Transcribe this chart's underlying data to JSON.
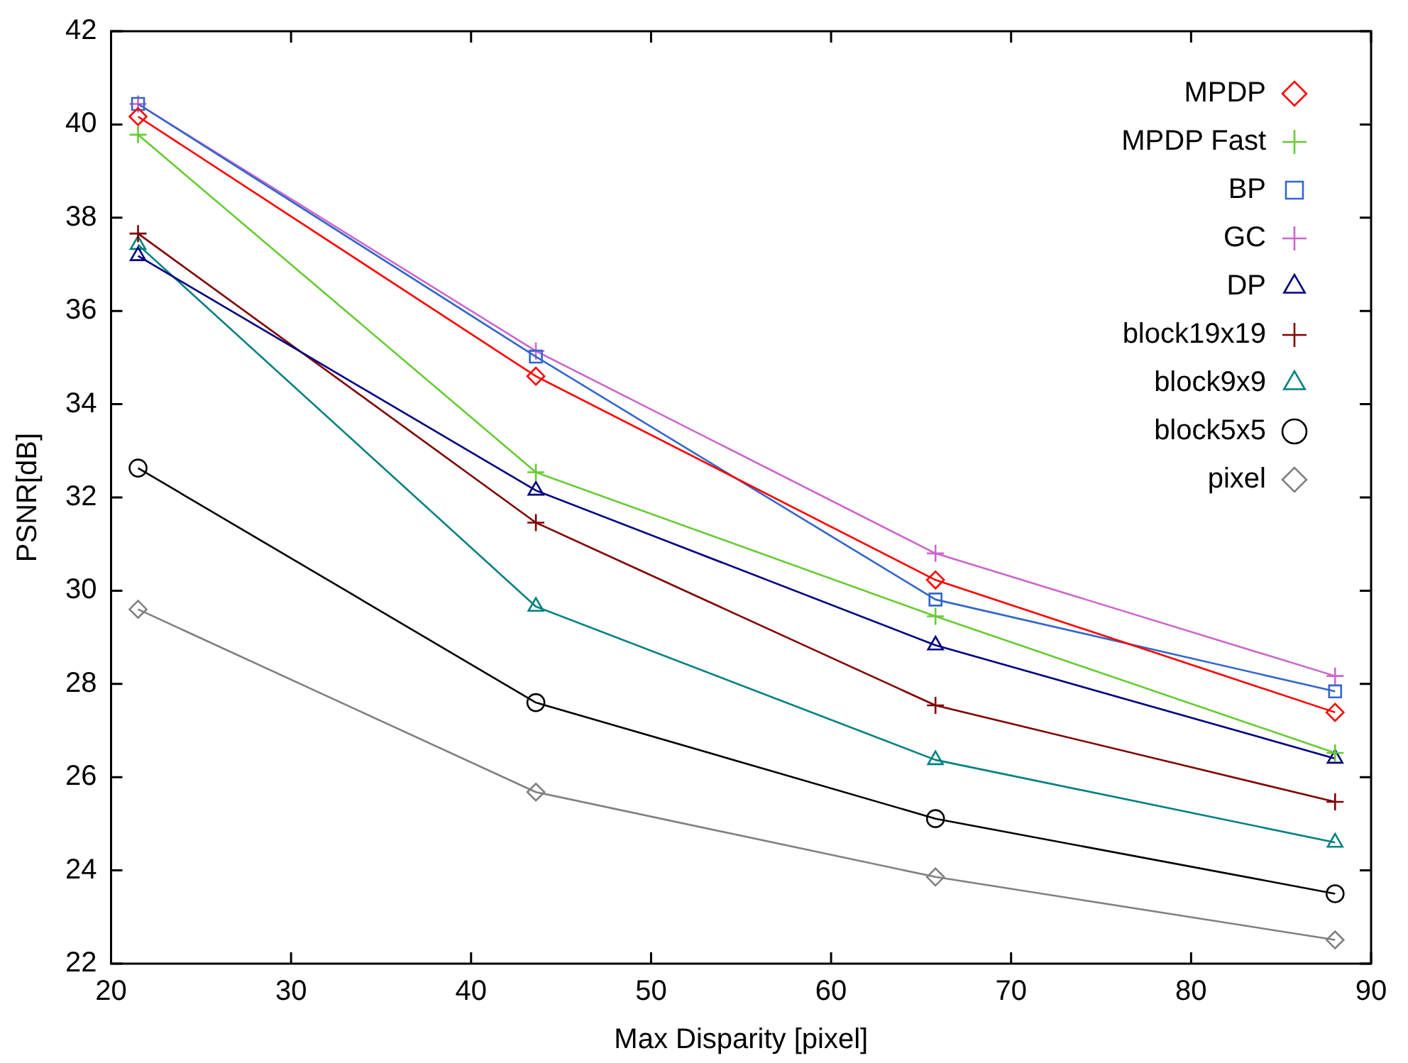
{
  "chart_data": {
    "type": "line",
    "xlabel": "Max Disparity [pixel]",
    "ylabel": "PSNR[dB]",
    "x": [
      21.5,
      43.6,
      65.8,
      88
    ],
    "xlim": [
      20,
      90
    ],
    "xticks": [
      20,
      30,
      40,
      50,
      60,
      70,
      80,
      90
    ],
    "ylim": [
      22,
      42
    ],
    "yticks": [
      22,
      24,
      26,
      28,
      30,
      32,
      34,
      36,
      38,
      40,
      42
    ],
    "grid": false,
    "legend": "top right",
    "series": [
      {
        "name": "MPDP",
        "color": "#ff0000",
        "marker": "diamond",
        "values": [
          40.17,
          34.6,
          30.23,
          27.39
        ]
      },
      {
        "name": "MPDP Fast",
        "color": "#66cc33",
        "marker": "cross",
        "values": [
          39.78,
          32.54,
          29.45,
          26.52
        ]
      },
      {
        "name": "BP",
        "color": "#3366cc",
        "marker": "square",
        "values": [
          40.44,
          35.02,
          29.81,
          27.84
        ]
      },
      {
        "name": "GC",
        "color": "#cc66cc",
        "marker": "cross",
        "values": [
          40.44,
          35.14,
          30.8,
          28.17
        ]
      },
      {
        "name": "DP",
        "color": "#000080",
        "marker": "triangle",
        "values": [
          37.18,
          32.15,
          28.83,
          26.4
        ]
      },
      {
        "name": "block19x19",
        "color": "#800000",
        "marker": "cross",
        "values": [
          37.66,
          31.46,
          27.54,
          25.47
        ]
      },
      {
        "name": "block9x9",
        "color": "#008080",
        "marker": "triangle",
        "values": [
          37.42,
          29.66,
          26.37,
          24.6
        ]
      },
      {
        "name": "block5x5",
        "color": "#000000",
        "marker": "circle",
        "values": [
          32.63,
          27.6,
          25.11,
          23.5
        ]
      },
      {
        "name": "pixel",
        "color": "#808080",
        "marker": "diamond",
        "values": [
          29.6,
          25.68,
          23.86,
          22.51
        ]
      }
    ]
  }
}
